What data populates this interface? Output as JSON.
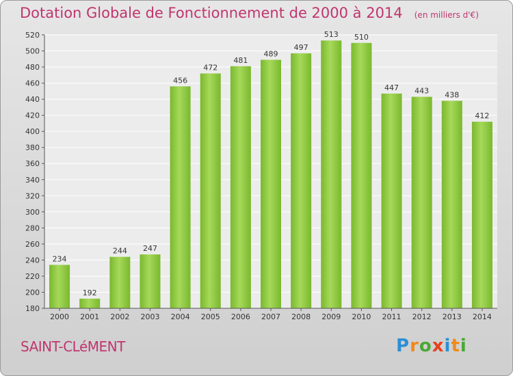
{
  "chart_data": {
    "type": "bar",
    "title": "Dotation Globale de Fonctionnement de 2000 à 2014",
    "unit_label": "(en milliers d'€)",
    "categories": [
      "2000",
      "2001",
      "2002",
      "2003",
      "2004",
      "2005",
      "2006",
      "2007",
      "2008",
      "2009",
      "2010",
      "2011",
      "2012",
      "2013",
      "2014"
    ],
    "values": [
      234,
      192,
      244,
      247,
      456,
      472,
      481,
      489,
      497,
      513,
      510,
      447,
      443,
      438,
      412
    ],
    "ylim": [
      180,
      520
    ],
    "yticks": [
      180,
      200,
      220,
      240,
      260,
      280,
      300,
      320,
      340,
      360,
      380,
      400,
      420,
      440,
      460,
      480,
      500,
      520
    ],
    "grid": true,
    "bar_color": "#7ab82e",
    "bar_highlight": "#a6d95a",
    "label_color": "#333333",
    "title_color": "#c0356d"
  },
  "commune": "SAINT-CLéMENT",
  "logo": {
    "letters": [
      "P",
      "r",
      "o",
      "x",
      "i",
      "t",
      "i"
    ],
    "colors": [
      "#2a8fd6",
      "#f08a1c",
      "#49a834",
      "#e8401c",
      "#2a8fd6",
      "#f08a1c",
      "#49a834"
    ]
  }
}
